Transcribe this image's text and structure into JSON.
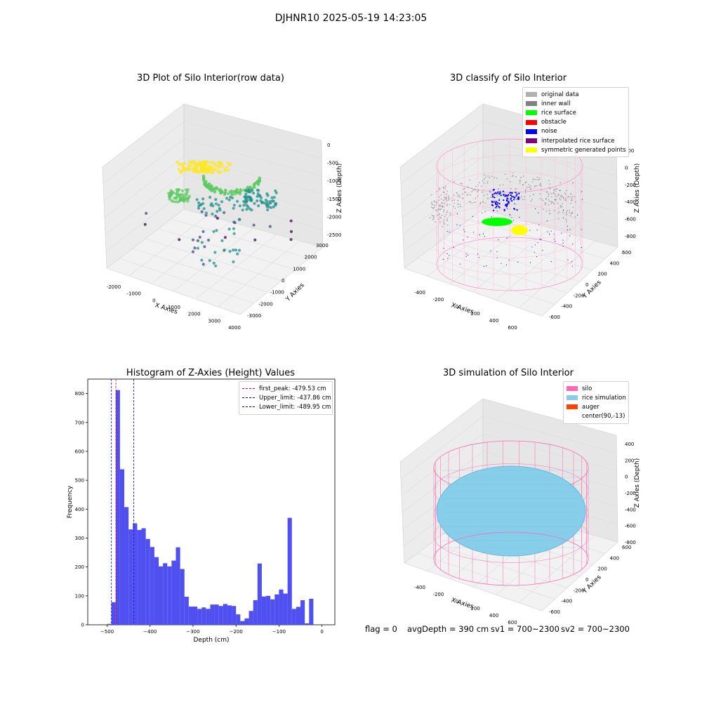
{
  "suptitle": "DJHNR10 2025-05-19 14:23:05",
  "chart_data": [
    {
      "type": "scatter",
      "title": "3D Plot of Silo Interior(row data)",
      "xlabel": "X Axies",
      "ylabel": "Y Axies",
      "zlabel": "Z Axies (Depth)",
      "x_ticks": [
        "-2000",
        "-1000",
        "0",
        "1000",
        "2000",
        "3000",
        "4000"
      ],
      "y_ticks": [
        "-3000",
        "-2000",
        "-1000",
        "0",
        "1000",
        "2000",
        "3000"
      ],
      "z_ticks": [
        "0",
        "-500",
        "-1000",
        "-1500",
        "-2000",
        "-2500"
      ],
      "xlim": [
        -2300,
        4200
      ],
      "ylim": [
        -3300,
        3300
      ],
      "zlim": [
        -2800,
        100
      ],
      "colormap": "viridis"
    },
    {
      "type": "scatter",
      "title": "3D classify of Silo Interior",
      "xlabel": "X Axies",
      "ylabel": "Y Axies",
      "zlabel": "Z Axies (Depth)",
      "x_ticks": [
        "-400",
        "-200",
        "0",
        "200",
        "400",
        "600"
      ],
      "y_ticks": [
        "-600",
        "-400",
        "-200",
        "0",
        "200",
        "400",
        "600"
      ],
      "z_ticks": [
        "200",
        "0",
        "-200",
        "-400",
        "-600",
        "-800"
      ],
      "legend": [
        {
          "label": "original data",
          "color": "#b0b0b0"
        },
        {
          "label": "inner wall",
          "color": "#808080"
        },
        {
          "label": "rice surface",
          "color": "#00ff00"
        },
        {
          "label": "obstacle",
          "color": "#ff0000"
        },
        {
          "label": "noise",
          "color": "#0000ff"
        },
        {
          "label": "interpolated rice surface",
          "color": "#800080"
        },
        {
          "label": "symmetric generated points",
          "color": "#ffff00"
        }
      ]
    },
    {
      "type": "bar",
      "title": "Histogram of Z-Axies (Height) Values",
      "xlabel": "Depth (cm)",
      "ylabel": "Frequency",
      "xlim": [
        -545,
        30
      ],
      "ylim": [
        0,
        850
      ],
      "x_ticks": [
        -500,
        -400,
        -300,
        -200,
        -100,
        0
      ],
      "y_ticks": [
        0,
        100,
        200,
        300,
        400,
        500,
        600,
        700,
        800
      ],
      "bin_width": 10,
      "bin_starts": [
        -500,
        -490,
        -480,
        -470,
        -460,
        -450,
        -440,
        -430,
        -420,
        -410,
        -400,
        -390,
        -380,
        -370,
        -360,
        -350,
        -340,
        -330,
        -320,
        -310,
        -300,
        -290,
        -280,
        -270,
        -260,
        -250,
        -240,
        -230,
        -220,
        -210,
        -200,
        -190,
        -180,
        -170,
        -160,
        -150,
        -140,
        -130,
        -120,
        -110,
        -100,
        -90,
        -80,
        -70,
        -60,
        -50,
        -40,
        -30,
        -20,
        -10,
        0
      ],
      "values": [
        3,
        78,
        812,
        538,
        407,
        330,
        351,
        328,
        334,
        297,
        269,
        234,
        202,
        213,
        202,
        222,
        268,
        193,
        97,
        63,
        63,
        55,
        60,
        55,
        70,
        70,
        65,
        72,
        67,
        65,
        36,
        13,
        22,
        48,
        85,
        212,
        98,
        100,
        88,
        105,
        122,
        108,
        370,
        55,
        62,
        85,
        5,
        90,
        0,
        0,
        0
      ],
      "vlines": [
        {
          "label": "first_peak: -479.53 cm",
          "x": -479.53,
          "color": "#ff0000"
        },
        {
          "label": "Upper_limit: -437.86 cm",
          "x": -437.86,
          "color": "#0000ff"
        },
        {
          "label": "Lower_limit: -489.95 cm",
          "x": -489.95,
          "color": "#0000ff"
        }
      ],
      "bar_color": "#5050f0"
    },
    {
      "type": "surface",
      "title": "3D simulation of Silo Interior",
      "xlabel": "X Axies",
      "ylabel": "Y Axies",
      "zlabel": "Z Axies (Depth)",
      "x_ticks": [
        "-400",
        "-200",
        "0",
        "200",
        "400",
        "600"
      ],
      "y_ticks": [
        "-600",
        "-400",
        "-200",
        "0",
        "200",
        "400",
        "600"
      ],
      "z_ticks": [
        "400",
        "200",
        "0",
        "-200",
        "-400",
        "-600",
        "-800"
      ],
      "legend": [
        {
          "label": "silo",
          "color": "#ff69b4"
        },
        {
          "label": "rice simulation",
          "color": "#87ceeb"
        },
        {
          "label": "auger",
          "color": "#ff4500"
        },
        {
          "label": "center(90,-13)",
          "color": ""
        }
      ]
    }
  ],
  "status": {
    "flag": "flag = 0",
    "avg_depth": "avgDepth = 390 cm",
    "sv1": "sv1 = 700~2300",
    "sv2": "sv2 = 700~2300"
  }
}
